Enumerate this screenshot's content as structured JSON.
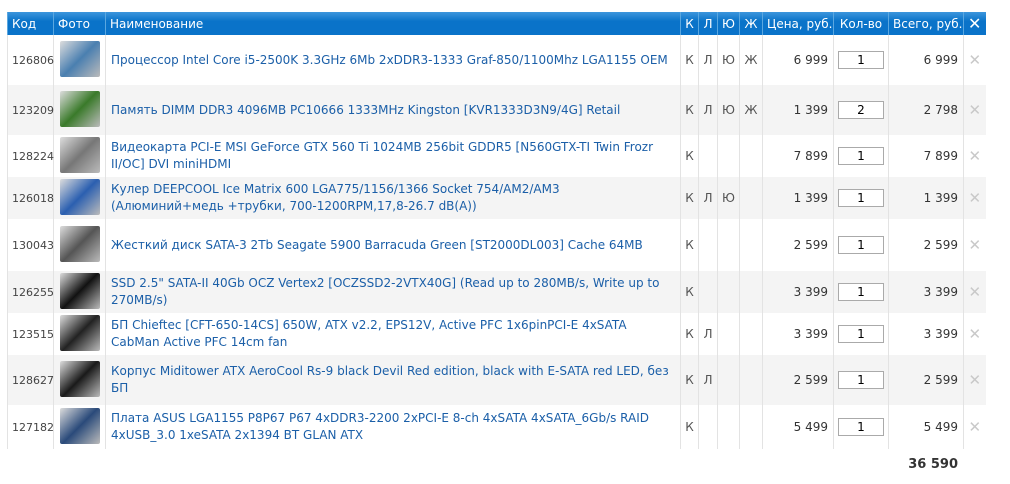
{
  "header": {
    "code": "Код",
    "photo": "Фото",
    "name": "Наименование",
    "k": "К",
    "l": "Л",
    "yu": "Ю",
    "zh": "Ж",
    "price": "Цена, руб.",
    "qty": "Кол-во",
    "total": "Всего, руб.",
    "remove_all": "✕"
  },
  "items": [
    {
      "code": "126806",
      "name": "Процессор Intel Core i5-2500K 3.3GHz 6Mb 2xDDR3-1333 Graf-850/1100Mhz LGA1155 OEM",
      "k": "К",
      "l": "Л",
      "yu": "Ю",
      "zh": "Ж",
      "price": "6 999",
      "qty": "1",
      "total": "6 999",
      "photo": "cpu",
      "color": "#4a7fb0"
    },
    {
      "code": "123209",
      "name": "Память DIMM DDR3 4096MB PC10666 1333MHz Kingston [KVR1333D3N9/4G] Retail",
      "k": "К",
      "l": "Л",
      "yu": "Ю",
      "zh": "Ж",
      "price": "1 399",
      "qty": "2",
      "total": "2 798",
      "photo": "ram",
      "color": "#3a7a2a"
    },
    {
      "code": "128224",
      "name": "Видеокарта PCI-E MSI GeForce GTX 560 Ti 1024MB 256bit GDDR5 [N560GTX-TI Twin Frozr II/OC] DVI miniHDMI",
      "k": "К",
      "l": "",
      "yu": "",
      "zh": "",
      "price": "7 899",
      "qty": "1",
      "total": "7 899",
      "photo": "gpu",
      "color": "#777777"
    },
    {
      "code": "126018",
      "name": "Кулер DEEPCOOL Ice Matrix 600 LGA775/1156/1366 Socket 754/AM2/AM3 (Алюминий+медь +трубки, 700-1200RPM,17,8-26.7 dB(A))",
      "k": "К",
      "l": "Л",
      "yu": "Ю",
      "zh": "",
      "price": "1 399",
      "qty": "1",
      "total": "1 399",
      "photo": "cooler",
      "color": "#2b5fb0"
    },
    {
      "code": "130043",
      "name": "Жесткий диск SATA-3 2Tb Seagate 5900 Barracuda Green [ST2000DL003] Cache 64MB",
      "k": "К",
      "l": "",
      "yu": "",
      "zh": "",
      "price": "2 599",
      "qty": "1",
      "total": "2 599",
      "photo": "hdd",
      "color": "#555555"
    },
    {
      "code": "126255",
      "name": "SSD 2.5\" SATA-II 40Gb OCZ Vertex2 [OCZSSD2-2VTX40G] (Read up to 280MB/s, Write up to 270MB/s)",
      "k": "К",
      "l": "",
      "yu": "",
      "zh": "",
      "price": "3 399",
      "qty": "1",
      "total": "3 399",
      "photo": "ssd",
      "color": "#111111"
    },
    {
      "code": "123515",
      "name": "БП Chieftec [CFT-650-14CS] 650W, ATX v2.2, EPS12V, Active PFC 1x6pinPCI-E 4xSATA CabMan Active PFC 14cm fan",
      "k": "К",
      "l": "Л",
      "yu": "",
      "zh": "",
      "price": "3 399",
      "qty": "1",
      "total": "3 399",
      "photo": "psu",
      "color": "#222222"
    },
    {
      "code": "128627",
      "name": "Корпус Miditower ATX AeroCool Rs-9 black Devil Red edition, black with E-SATA red LED, без БП",
      "k": "К",
      "l": "Л",
      "yu": "",
      "zh": "",
      "price": "2 599",
      "qty": "1",
      "total": "2 599",
      "photo": "case",
      "color": "#1a1a1a"
    },
    {
      "code": "127182",
      "name": "Плата ASUS LGA1155 P8P67 P67 4xDDR3-2200 2xPCI-E 8-ch 4xSATA 4xSATA_6Gb/s RAID 4xUSB_3.0 1xeSATA 2x1394 BT GLAN ATX",
      "k": "К",
      "l": "",
      "yu": "",
      "zh": "",
      "price": "5 499",
      "qty": "1",
      "total": "5 499",
      "photo": "motherboard",
      "color": "#2a4a7a"
    }
  ],
  "remove_icon": "✕",
  "grand_total": "36 590"
}
